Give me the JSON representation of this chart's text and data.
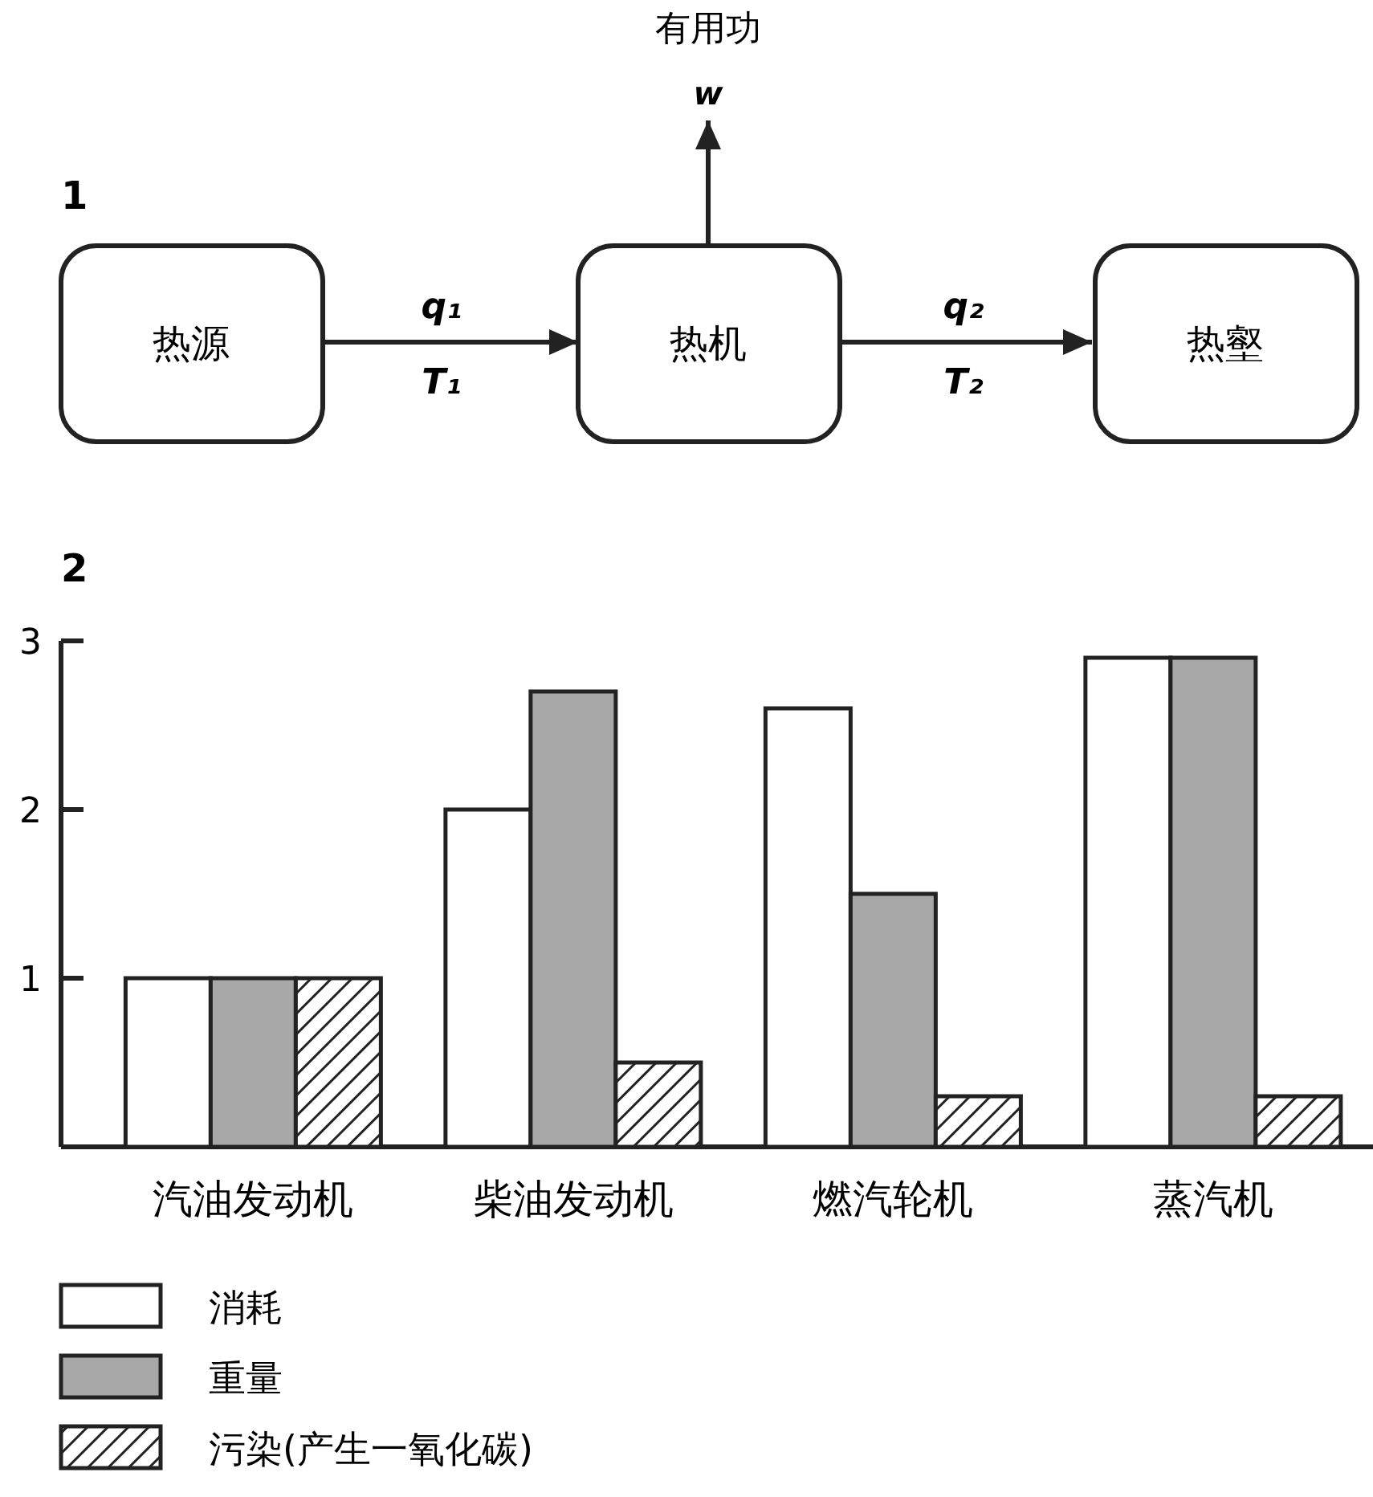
{
  "chart_data": [
    {
      "type": "other",
      "title": "1",
      "annotations": [
        "有用功",
        "w",
        "热源",
        "q₁",
        "T₁",
        "热机",
        "q₂",
        "T₂",
        "热壑"
      ]
    },
    {
      "type": "bar",
      "title": "2",
      "categories": [
        "汽油发动机",
        "柴油发动机",
        "燃汽轮机",
        "蒸汽机"
      ],
      "ylim": [
        0,
        3
      ],
      "yticks": [
        1,
        2,
        3
      ],
      "legend": "bottom",
      "series": [
        {
          "name": "消耗",
          "color": "#ffffff",
          "values": [
            1,
            2.0,
            2.6,
            2.9
          ]
        },
        {
          "name": "重量",
          "color": "#a8a8a8",
          "values": [
            1,
            2.7,
            1.5,
            2.9
          ]
        },
        {
          "name": "污染(产生一氧化碳)",
          "color": "#222222",
          "values": [
            1,
            0.5,
            0.3,
            0.3
          ]
        }
      ]
    }
  ]
}
